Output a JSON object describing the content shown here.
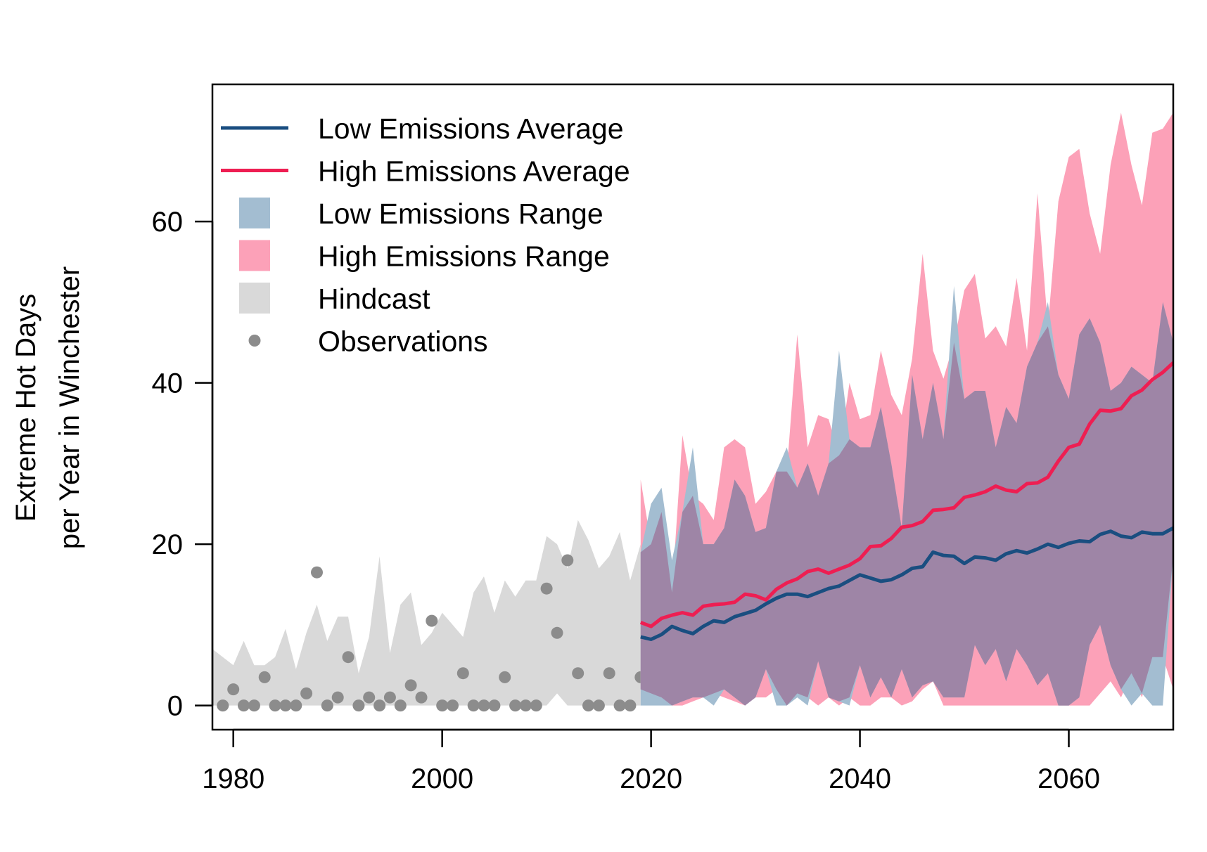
{
  "chart_data": {
    "type": "area",
    "title": "",
    "xlabel": "",
    "ylabel_lines": [
      "Extreme Hot Days",
      "per Year in Winchester"
    ],
    "xlim": [
      1978,
      2070
    ],
    "ylim": [
      -3,
      77
    ],
    "x_ticks": [
      1980,
      2000,
      2020,
      2040,
      2060
    ],
    "y_ticks": [
      0,
      20,
      40,
      60
    ],
    "grid": false,
    "legend_position": "top-left",
    "colors": {
      "low_line": "#1a4e80",
      "high_line": "#ee1e52",
      "low_range": "#a3bdd1",
      "high_range": "#fca1b8",
      "overlap": "#9e85a6",
      "hindcast": "#d9d9d9",
      "observations": "#8c8c8c"
    },
    "legend": [
      {
        "label": "Low Emissions Average",
        "kind": "line",
        "color": "#1a4e80"
      },
      {
        "label": "High Emissions Average",
        "kind": "line",
        "color": "#ee1e52"
      },
      {
        "label": "Low Emissions Range",
        "kind": "box",
        "color": "#a3bdd1"
      },
      {
        "label": "High Emissions Range",
        "kind": "box",
        "color": "#fca1b8"
      },
      {
        "label": "Hindcast",
        "kind": "box",
        "color": "#d9d9d9"
      },
      {
        "label": "Observations",
        "kind": "dot",
        "color": "#8c8c8c"
      }
    ],
    "hindcast": {
      "x": [
        1978,
        1979,
        1980,
        1981,
        1982,
        1983,
        1984,
        1985,
        1986,
        1987,
        1988,
        1989,
        1990,
        1991,
        1992,
        1993,
        1994,
        1995,
        1996,
        1997,
        1998,
        1999,
        2000,
        2001,
        2002,
        2003,
        2004,
        2005,
        2006,
        2007,
        2008,
        2009,
        2010,
        2011,
        2012,
        2013,
        2014,
        2015,
        2016,
        2017,
        2018,
        2019
      ],
      "upper": [
        7,
        6,
        5,
        8,
        5,
        5,
        6,
        9.5,
        4.5,
        9,
        12.5,
        8,
        11,
        11,
        4,
        8.5,
        18.5,
        6.5,
        12.5,
        14,
        7.5,
        9,
        11.5,
        10,
        8.5,
        14,
        16,
        11.5,
        15.5,
        13.5,
        15.5,
        15.5,
        21,
        20,
        17,
        23,
        20.5,
        17,
        18.5,
        21.5,
        15.5,
        20
      ],
      "lower": [
        0,
        0,
        0,
        0,
        0,
        0,
        0,
        0,
        0,
        0,
        0,
        0,
        0,
        0,
        0,
        0,
        0,
        0,
        0,
        0,
        0,
        0,
        0,
        0,
        0,
        0,
        0,
        0,
        0,
        0,
        0,
        0,
        0,
        1.5,
        0,
        0,
        0,
        0,
        0,
        0,
        0,
        0
      ]
    },
    "observations": {
      "x": [
        1979,
        1980,
        1981,
        1982,
        1983,
        1984,
        1985,
        1986,
        1987,
        1988,
        1989,
        1990,
        1991,
        1992,
        1993,
        1994,
        1995,
        1996,
        1997,
        1998,
        1999,
        2000,
        2001,
        2002,
        2003,
        2004,
        2005,
        2006,
        2007,
        2008,
        2009,
        2010,
        2011,
        2012,
        2013,
        2014,
        2015,
        2016,
        2017,
        2018,
        2019
      ],
      "y": [
        0,
        2,
        0,
        0,
        3.5,
        0,
        0,
        0,
        1.5,
        16.5,
        0,
        1,
        6,
        0,
        1,
        0,
        1,
        0,
        2.5,
        1,
        10.5,
        0,
        0,
        4,
        0,
        0,
        0,
        3.5,
        0,
        0,
        0,
        14.5,
        9,
        18,
        4,
        0,
        0,
        4,
        0,
        0,
        3.5
      ]
    },
    "projections": {
      "x": [
        2019,
        2020,
        2021,
        2022,
        2023,
        2024,
        2025,
        2026,
        2027,
        2028,
        2029,
        2030,
        2031,
        2032,
        2033,
        2034,
        2035,
        2036,
        2037,
        2038,
        2039,
        2040,
        2041,
        2042,
        2043,
        2044,
        2045,
        2046,
        2047,
        2048,
        2049,
        2050,
        2051,
        2052,
        2053,
        2054,
        2055,
        2056,
        2057,
        2058,
        2059,
        2060,
        2061,
        2062,
        2063,
        2064,
        2065,
        2066,
        2067,
        2068,
        2069,
        2070
      ],
      "series": [
        {
          "name": "Low Emissions Range",
          "upper": [
            19,
            25,
            27,
            18,
            24,
            32,
            20,
            20,
            22,
            28,
            26,
            21.5,
            22,
            29,
            32,
            27,
            30,
            26,
            30,
            44,
            33,
            32,
            32,
            37,
            30,
            22,
            41,
            33,
            40,
            33,
            52,
            38,
            39,
            39,
            32,
            37,
            35,
            42,
            45,
            50,
            41,
            38,
            46,
            48,
            45,
            39,
            40,
            42,
            41,
            40,
            50,
            45
          ],
          "lower": [
            0,
            0,
            0,
            0,
            0.5,
            1,
            1,
            0,
            2,
            1,
            0,
            1,
            4.5,
            0,
            0,
            1,
            0,
            5.5,
            1,
            0.5,
            0,
            5,
            1,
            3.5,
            1,
            4.5,
            1,
            2.5,
            3,
            1,
            1,
            1,
            7.5,
            5,
            7,
            3,
            7,
            5,
            2.5,
            4,
            0,
            0,
            1,
            7.5,
            10,
            5,
            2,
            0,
            1.5,
            0,
            0,
            18.5
          ]
        },
        {
          "name": "High Emissions Range",
          "upper": [
            28,
            20,
            24,
            14,
            33.5,
            26,
            25,
            23,
            32,
            33,
            32,
            25,
            26.5,
            29,
            29,
            46,
            32,
            36,
            35.5,
            31,
            40,
            35.5,
            36,
            44,
            38.5,
            36,
            43,
            56,
            44,
            40.5,
            45,
            51.5,
            53.5,
            45.5,
            47,
            44.5,
            53,
            44,
            63.5,
            47,
            62.5,
            68,
            69,
            61,
            56,
            67,
            73.5,
            67,
            62,
            71,
            71.5,
            73.5
          ],
          "lower": [
            2,
            1.5,
            1,
            0,
            0,
            0.5,
            1,
            1.5,
            1,
            0.5,
            0,
            1,
            1,
            2,
            0,
            1.5,
            1,
            0,
            1,
            0,
            1,
            0,
            0,
            1,
            1,
            0,
            0.5,
            2,
            3,
            0,
            0,
            0,
            0,
            0,
            0,
            0,
            0,
            0,
            0,
            0,
            0,
            0,
            0,
            0,
            1.5,
            3,
            1,
            4,
            1,
            6,
            6,
            2
          ]
        },
        {
          "name": "Low Emissions Average",
          "values": [
            8.5,
            8.2,
            8.8,
            9.8,
            9.3,
            8.9,
            9.8,
            10.5,
            10.3,
            11,
            11.4,
            11.8,
            12.6,
            13.3,
            13.8,
            13.8,
            13.5,
            14,
            14.5,
            14.8,
            15.5,
            16.2,
            15.8,
            15.4,
            15.6,
            16.2,
            17,
            17.2,
            19,
            18.6,
            18.5,
            17.6,
            18.4,
            18.3,
            18,
            18.8,
            19.2,
            18.9,
            19.4,
            20,
            19.6,
            20.1,
            20.4,
            20.3,
            21.2,
            21.6,
            21,
            20.8,
            21.5,
            21.3,
            21.3,
            22
          ]
        },
        {
          "name": "High Emissions Average",
          "values": [
            10.3,
            9.8,
            10.8,
            11.2,
            11.5,
            11.2,
            12.3,
            12.5,
            12.6,
            12.8,
            13.8,
            13.6,
            13.1,
            14.4,
            15.2,
            15.7,
            16.6,
            16.9,
            16.4,
            16.9,
            17.4,
            18.2,
            19.7,
            19.8,
            20.7,
            22.1,
            22.3,
            22.8,
            24.2,
            24.3,
            24.5,
            25.8,
            26.1,
            26.5,
            27.2,
            26.7,
            26.5,
            27.5,
            27.6,
            28.3,
            30.3,
            32,
            32.4,
            34.9,
            36.6,
            36.5,
            36.8,
            38.4,
            39.1,
            40.4,
            41.3,
            42.5
          ]
        }
      ]
    }
  }
}
